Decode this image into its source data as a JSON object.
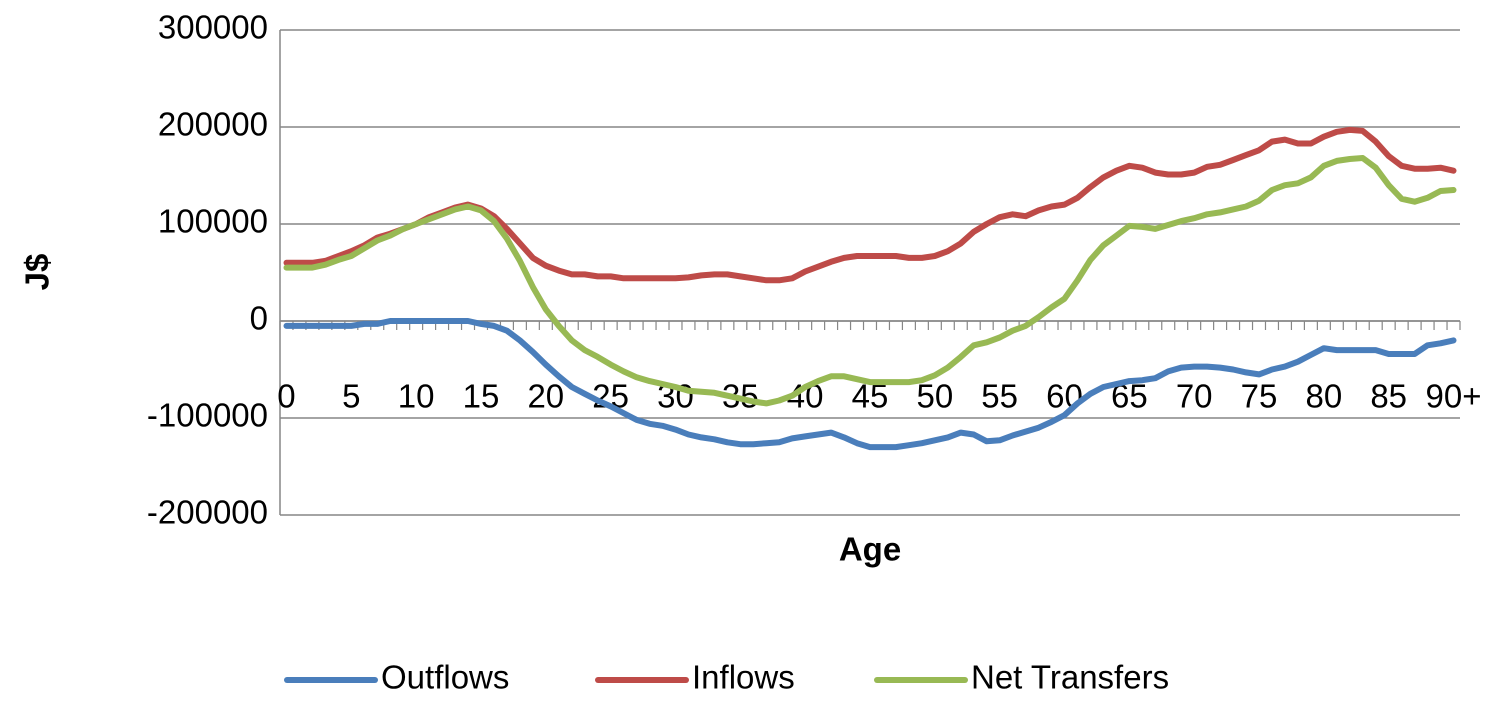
{
  "chart_data": {
    "type": "line",
    "categories": [
      "0",
      null,
      null,
      null,
      null,
      "5",
      null,
      null,
      null,
      null,
      "10",
      null,
      null,
      null,
      null,
      "15",
      null,
      null,
      null,
      null,
      "20",
      null,
      null,
      null,
      null,
      "25",
      null,
      null,
      null,
      null,
      "30",
      null,
      null,
      null,
      null,
      "35",
      null,
      null,
      null,
      null,
      "40",
      null,
      null,
      null,
      null,
      "45",
      null,
      null,
      null,
      null,
      "50",
      null,
      null,
      null,
      null,
      "55",
      null,
      null,
      null,
      null,
      "60",
      null,
      null,
      null,
      null,
      "65",
      null,
      null,
      null,
      null,
      "70",
      null,
      null,
      null,
      null,
      "75",
      null,
      null,
      null,
      null,
      "80",
      null,
      null,
      null,
      null,
      "85",
      null,
      null,
      null,
      null,
      "90+"
    ],
    "series": [
      {
        "name": "Outflows",
        "color": "#4a7ebb",
        "values": [
          -5000,
          -5000,
          -5000,
          -5000,
          -5000,
          -5000,
          -3000,
          -3000,
          0,
          0,
          0,
          0,
          0,
          0,
          0,
          -3000,
          -5000,
          -10000,
          -20000,
          -32000,
          -45000,
          -57000,
          -68000,
          -75000,
          -82000,
          -88000,
          -95000,
          -102000,
          -106000,
          -108000,
          -112000,
          -117000,
          -120000,
          -122000,
          -125000,
          -127000,
          -127000,
          -126000,
          -125000,
          -121000,
          -119000,
          -117000,
          -115000,
          -120000,
          -126000,
          -130000,
          -130000,
          -130000,
          -128000,
          -126000,
          -123000,
          -120000,
          -115000,
          -117000,
          -124000,
          -123000,
          -118000,
          -114000,
          -110000,
          -104000,
          -97000,
          -85000,
          -75000,
          -68000,
          -65000,
          -62000,
          -61000,
          -59000,
          -52000,
          -48000,
          -47000,
          -47000,
          -48000,
          -50000,
          -53000,
          -55000,
          -50000,
          -47000,
          -42000,
          -35000,
          -28000,
          -30000,
          -30000,
          -30000,
          -30000,
          -34000,
          -34000,
          -34000,
          -25000,
          -23000,
          -20000
        ]
      },
      {
        "name": "Inflows",
        "color": "#be4b48",
        "values": [
          60000,
          60000,
          60000,
          62000,
          67000,
          72000,
          78000,
          86000,
          90000,
          95000,
          100000,
          107000,
          112000,
          117000,
          120000,
          116000,
          108000,
          95000,
          80000,
          65000,
          57000,
          52000,
          48000,
          48000,
          46000,
          46000,
          44000,
          44000,
          44000,
          44000,
          44000,
          45000,
          47000,
          48000,
          48000,
          46000,
          44000,
          42000,
          42000,
          44000,
          51000,
          56000,
          61000,
          65000,
          67000,
          67000,
          67000,
          67000,
          65000,
          65000,
          67000,
          72000,
          80000,
          92000,
          100000,
          107000,
          110000,
          108000,
          114000,
          118000,
          120000,
          127000,
          138000,
          148000,
          155000,
          160000,
          158000,
          153000,
          151000,
          151000,
          153000,
          159000,
          161000,
          166000,
          171000,
          176000,
          185000,
          187000,
          183000,
          183000,
          190000,
          195000,
          197000,
          196000,
          185000,
          170000,
          160000,
          157000,
          157000,
          158000,
          155000
        ]
      },
      {
        "name": "Net Transfers",
        "color": "#98b954",
        "values": [
          55000,
          55000,
          55000,
          58000,
          63000,
          67000,
          75000,
          83000,
          88000,
          95000,
          100000,
          105000,
          110000,
          115000,
          118000,
          114000,
          103000,
          85000,
          62000,
          35000,
          12000,
          -5000,
          -20000,
          -30000,
          -37000,
          -45000,
          -52000,
          -58000,
          -62000,
          -65000,
          -68000,
          -72000,
          -73000,
          -74000,
          -77000,
          -80000,
          -83000,
          -85000,
          -82000,
          -77000,
          -68000,
          -62000,
          -57000,
          -57000,
          -60000,
          -63000,
          -63000,
          -63000,
          -63000,
          -61000,
          -56000,
          -48000,
          -37000,
          -25000,
          -22000,
          -17000,
          -10000,
          -5000,
          4000,
          14000,
          23000,
          42000,
          63000,
          78000,
          88000,
          98000,
          97000,
          95000,
          99000,
          103000,
          106000,
          110000,
          112000,
          115000,
          118000,
          124000,
          135000,
          140000,
          142000,
          148000,
          160000,
          165000,
          167000,
          168000,
          158000,
          140000,
          126000,
          123000,
          127000,
          134000,
          135000
        ]
      }
    ],
    "xlabel": "Age",
    "ylabel": "J$",
    "ylim": [
      -200000,
      300000
    ],
    "yticks": [
      -200000,
      -100000,
      0,
      100000,
      200000,
      300000
    ],
    "grid": true,
    "legend": "bottom"
  }
}
